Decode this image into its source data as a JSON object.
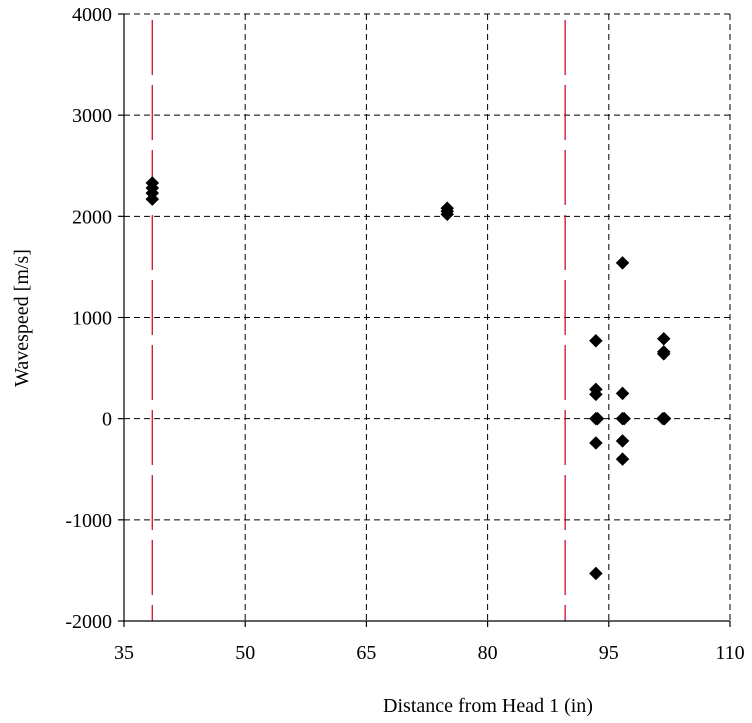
{
  "chart_data": {
    "type": "scatter",
    "title": "",
    "xlabel": "Distance from Head 1 (in)",
    "ylabel": "Wavespeed [m/s]",
    "xlim": [
      35,
      110
    ],
    "ylim": [
      -2000,
      4000
    ],
    "x_ticks": [
      35,
      50,
      65,
      80,
      95,
      110
    ],
    "y_ticks": [
      -2000,
      -1000,
      0,
      1000,
      2000,
      3000,
      4000
    ],
    "x_tick_labels": [
      "35",
      "50",
      "65",
      "80",
      "95",
      "110"
    ],
    "y_tick_labels": [
      "-2000",
      "-1000",
      "0",
      "1000",
      "2000",
      "3000",
      "4000"
    ],
    "grid": true,
    "grid_style": "dashed",
    "vertical_reference_lines": [
      {
        "x": 38.5,
        "color": "#c8102e",
        "style": "long-dash"
      },
      {
        "x": 89.6,
        "color": "#c8102e",
        "style": "long-dash"
      }
    ],
    "marker": "diamond",
    "marker_color": "#000000",
    "series": [
      {
        "points": [
          {
            "x": 38.5,
            "y": 2330
          },
          {
            "x": 38.5,
            "y": 2280
          },
          {
            "x": 38.5,
            "y": 2230
          },
          {
            "x": 38.5,
            "y": 2170
          },
          {
            "x": 75.0,
            "y": 2080
          },
          {
            "x": 75.0,
            "y": 2050
          },
          {
            "x": 75.0,
            "y": 2020
          },
          {
            "x": 93.4,
            "y": 770
          },
          {
            "x": 93.4,
            "y": 290
          },
          {
            "x": 93.4,
            "y": 240
          },
          {
            "x": 93.4,
            "y": 0
          },
          {
            "x": 93.6,
            "y": 0
          },
          {
            "x": 93.4,
            "y": -240
          },
          {
            "x": 93.4,
            "y": -1530
          },
          {
            "x": 96.7,
            "y": 1540
          },
          {
            "x": 96.7,
            "y": 250
          },
          {
            "x": 96.7,
            "y": 0
          },
          {
            "x": 96.9,
            "y": 0
          },
          {
            "x": 96.7,
            "y": -220
          },
          {
            "x": 96.7,
            "y": -400
          },
          {
            "x": 101.8,
            "y": 790
          },
          {
            "x": 101.8,
            "y": 660
          },
          {
            "x": 101.8,
            "y": 640
          },
          {
            "x": 101.7,
            "y": 0
          },
          {
            "x": 101.9,
            "y": 0
          }
        ]
      }
    ]
  }
}
